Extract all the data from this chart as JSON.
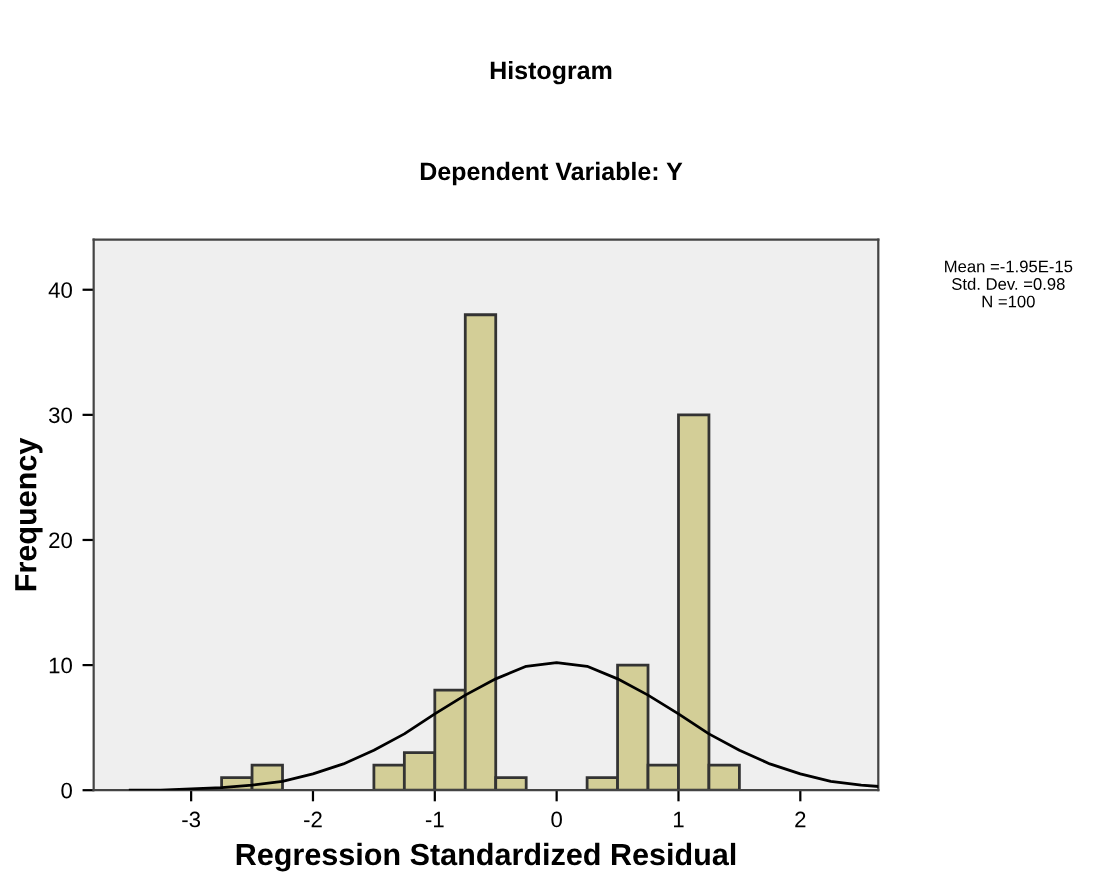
{
  "chart_data": {
    "type": "histogram",
    "title": "Histogram",
    "subtitle": "Dependent Variable: Y",
    "xlabel": "Regression Standardized Residual",
    "ylabel": "Frequency",
    "bins": [
      -2.75,
      -2.5,
      -2.25,
      -2.0,
      -1.75,
      -1.5,
      -1.25,
      -1.0,
      -0.75,
      -0.5,
      -0.25,
      0.0,
      0.25,
      0.5,
      0.75,
      1.0,
      1.25,
      1.5
    ],
    "values": [
      1,
      2,
      0,
      0,
      0,
      2,
      3,
      8,
      38,
      1,
      0,
      0,
      1,
      10,
      2,
      30,
      2
    ],
    "color": "#d3ce97",
    "series": [
      {
        "type": "line",
        "color": "#000000",
        "x": [
          -3.5,
          -3.25,
          -3.0,
          -2.75,
          -2.5,
          -2.25,
          -2.0,
          -1.75,
          -1.5,
          -1.25,
          -1.0,
          -0.75,
          -0.5,
          -0.25,
          0.0,
          0.25,
          0.5,
          0.75,
          1.0,
          1.25,
          1.5,
          1.75,
          2.0,
          2.25,
          2.5,
          2.64
        ],
        "values": [
          0.0,
          0.0,
          0.1,
          0.2,
          0.4,
          0.7,
          1.3,
          2.1,
          3.2,
          4.5,
          6.1,
          7.6,
          8.9,
          9.9,
          10.2,
          9.9,
          8.9,
          7.6,
          6.1,
          4.5,
          3.2,
          2.1,
          1.3,
          0.7,
          0.4,
          0.3
        ]
      }
    ],
    "xlim": [
      -3.8,
      2.64
    ],
    "ylim": [
      0,
      44
    ],
    "xticks": [
      -3,
      -2,
      -1,
      0,
      1,
      2
    ],
    "yticks": [
      0,
      10,
      20,
      30,
      40
    ],
    "grid": false,
    "legend": false,
    "annotations": [
      "Mean =-1.95E-15",
      "Std. Dev. =0.98",
      "N =100"
    ]
  }
}
